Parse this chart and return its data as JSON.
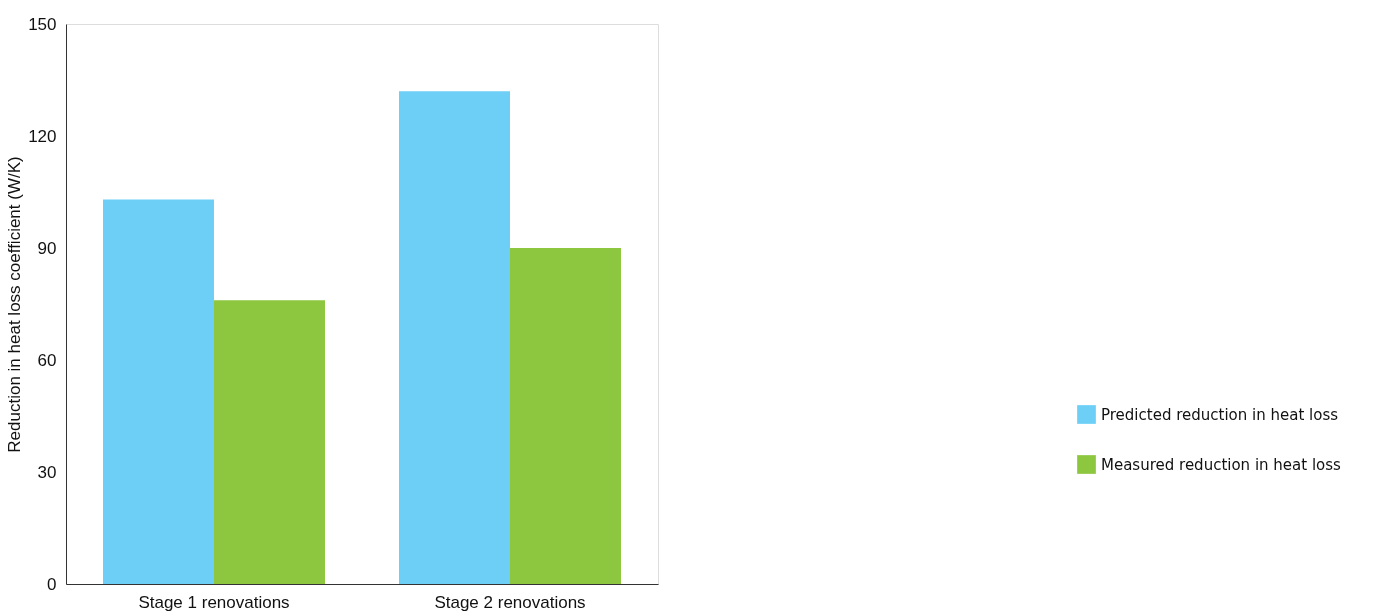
{
  "chart_data": {
    "type": "bar",
    "ylabel": "Reduction in heat loss coefficient (W/K)",
    "categories": [
      "Stage 1 renovations",
      "Stage 2 renovations"
    ],
    "series": [
      {
        "name": "Predicted reduction in heat loss",
        "color": "#6dcff6",
        "values": [
          103,
          132
        ]
      },
      {
        "name": "Measured reduction in heat loss",
        "color": "#8dc63f",
        "values": [
          76,
          90
        ]
      }
    ],
    "ylim": [
      0,
      150
    ],
    "yticks": [
      0,
      30,
      60,
      90,
      120,
      150
    ],
    "grid": false,
    "legend": "bottom right"
  }
}
